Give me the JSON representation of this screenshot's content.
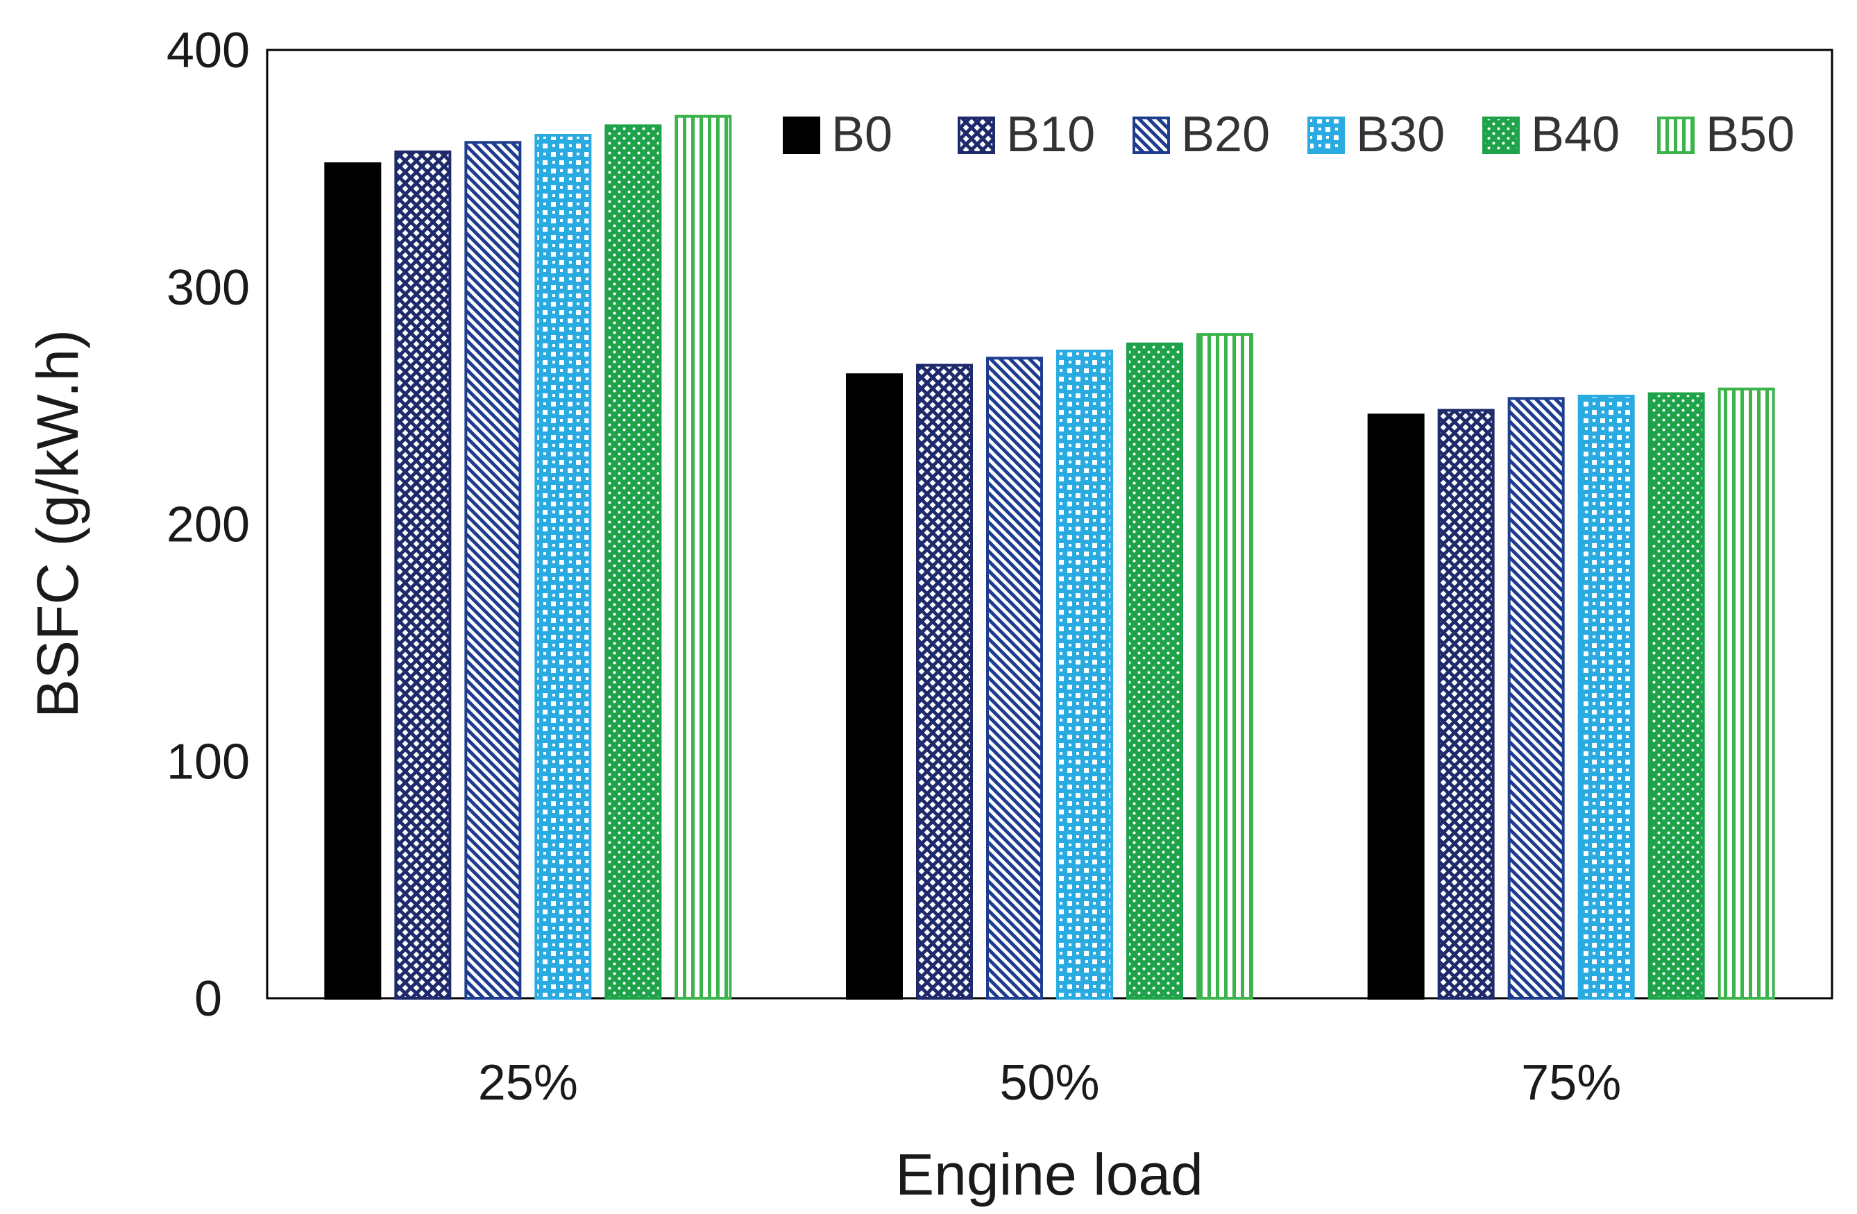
{
  "chart_data": {
    "type": "bar",
    "title": "",
    "xlabel": "Engine load",
    "ylabel": "BSFC (g/kW.h)",
    "ylim": [
      0,
      400
    ],
    "yticks": [
      0,
      100,
      200,
      300,
      400
    ],
    "categories": [
      "25%",
      "50%",
      "75%"
    ],
    "series": [
      {
        "name": "B0",
        "values": [
          352,
          263,
          246
        ],
        "color": "#000000",
        "pattern": "solid"
      },
      {
        "name": "B10",
        "values": [
          357,
          267,
          248
        ],
        "color": "#1f2a6b",
        "pattern": "cross"
      },
      {
        "name": "B20",
        "values": [
          361,
          270,
          253
        ],
        "color": "#1f3d8f",
        "pattern": "diagonal"
      },
      {
        "name": "B30",
        "values": [
          364,
          273,
          254
        ],
        "color": "#29abe2",
        "pattern": "dots"
      },
      {
        "name": "B40",
        "values": [
          368,
          276,
          255
        ],
        "color": "#1fa34a",
        "pattern": "fine-dots"
      },
      {
        "name": "B50",
        "values": [
          372,
          280,
          257
        ],
        "color": "#3cb44b",
        "pattern": "vertical"
      }
    ],
    "legend_position": "top-right",
    "grid": false
  }
}
